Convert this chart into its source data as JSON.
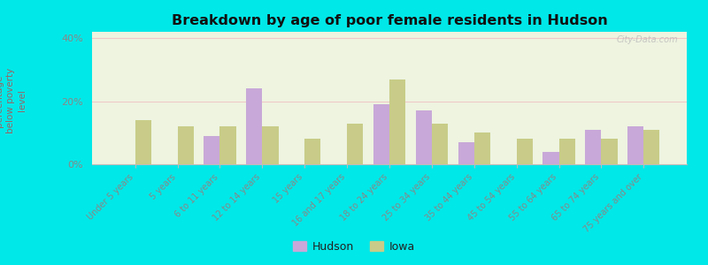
{
  "title": "Breakdown by age of poor female residents in Hudson",
  "ylabel": "percentage\nbelow poverty\nlevel",
  "categories": [
    "Under 5 years",
    "5 years",
    "6 to 11 years",
    "12 to 14 years",
    "15 years",
    "16 and 17 years",
    "18 to 24 years",
    "25 to 34 years",
    "35 to 44 years",
    "45 to 54 years",
    "55 to 64 years",
    "65 to 74 years",
    "75 years and over"
  ],
  "hudson_values": [
    0,
    0,
    9.0,
    24.0,
    0,
    0,
    19.0,
    17.0,
    7.0,
    0,
    4.0,
    11.0,
    12.0
  ],
  "iowa_values": [
    14.0,
    12.0,
    12.0,
    12.0,
    8.0,
    13.0,
    27.0,
    13.0,
    10.0,
    8.0,
    8.0,
    8.0,
    11.0
  ],
  "hudson_color": "#c8a8d8",
  "iowa_color": "#c8cc88",
  "plot_bg_color": "#eef4e0",
  "ylim": [
    0,
    42
  ],
  "yticks": [
    0,
    20,
    40
  ],
  "ytick_labels": [
    "0%",
    "20%",
    "40%"
  ],
  "bar_width": 0.38,
  "background_outer": "#00e8e8",
  "watermark": "City-Data.com",
  "grid_color": "#f0c8c8",
  "ylabel_color": "#996666",
  "tick_color": "#888888",
  "title_color": "#111111"
}
